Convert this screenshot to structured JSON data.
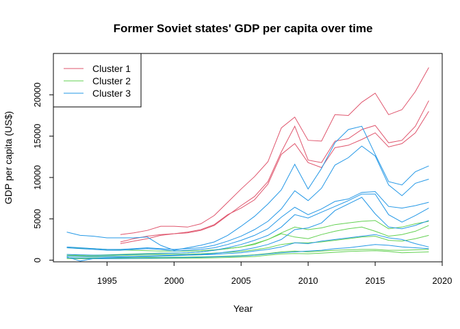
{
  "chart_data": {
    "type": "line",
    "title": "Former Soviet states' GDP per capita over time",
    "xlabel": "Year",
    "ylabel": "GDP per capita (US$)",
    "xlim": [
      1991,
      2020
    ],
    "ylim": [
      -200,
      25000
    ],
    "xticks": [
      1995,
      2000,
      2005,
      2010,
      2015,
      2020
    ],
    "yticks": [
      0,
      5000,
      10000,
      15000,
      20000
    ],
    "grid": false,
    "legend_position": "top-left",
    "legend": [
      {
        "name": "Cluster 1",
        "color": "#df536b"
      },
      {
        "name": "Cluster 2",
        "color": "#61d04f"
      },
      {
        "name": "Cluster 3",
        "color": "#2297e6"
      }
    ],
    "series": [
      {
        "cluster": 1,
        "color": "#df536b",
        "x": [
          1996,
          1997,
          1998,
          1999,
          2000,
          2001,
          2002,
          2003,
          2004,
          2005,
          2006,
          2007,
          2008,
          2009,
          2010,
          2011,
          2012,
          2013,
          2014,
          2015,
          2016,
          2017,
          2018,
          2019
        ],
        "values": [
          3100,
          3300,
          3600,
          4100,
          4100,
          4000,
          4400,
          5400,
          7000,
          8600,
          10100,
          11900,
          16000,
          17300,
          14500,
          14400,
          17600,
          17500,
          19100,
          20200,
          17600,
          18200,
          20400,
          23300
        ]
      },
      {
        "cluster": 1,
        "color": "#df536b",
        "x": [
          1996,
          1997,
          1998,
          1999,
          2000,
          2001,
          2002,
          2003,
          2004,
          2005,
          2006,
          2007,
          2008,
          2009,
          2010,
          2011,
          2012,
          2013,
          2014,
          2015,
          2016,
          2017,
          2018,
          2019
        ],
        "values": [
          2200,
          2600,
          2900,
          3100,
          3200,
          3300,
          3600,
          4200,
          5400,
          6600,
          7700,
          9500,
          13100,
          16200,
          12100,
          11800,
          14400,
          14700,
          15800,
          16300,
          14200,
          14500,
          16200,
          19300
        ]
      },
      {
        "cluster": 1,
        "color": "#df536b",
        "x": [
          1996,
          1997,
          1998,
          1999,
          2000,
          2001,
          2002,
          2003,
          2004,
          2005,
          2006,
          2007,
          2008,
          2009,
          2010,
          2011,
          2012,
          2013,
          2014,
          2015,
          2016,
          2017,
          2018,
          2019
        ],
        "values": [
          2000,
          2300,
          2600,
          3000,
          3200,
          3400,
          3700,
          4300,
          5500,
          6300,
          7300,
          9200,
          12800,
          14100,
          11800,
          11200,
          13600,
          13900,
          14600,
          15400,
          13700,
          14100,
          15400,
          18000
        ]
      },
      {
        "cluster": 2,
        "color": "#61d04f",
        "x": [
          1992,
          1993,
          1994,
          1995,
          1996,
          1997,
          1998,
          1999,
          2000,
          2001,
          2002,
          2003,
          2004,
          2005,
          2006,
          2007,
          2008,
          2009,
          2010,
          2011,
          2012,
          2013,
          2014,
          2015,
          2016,
          2017,
          2018,
          2019
        ],
        "values": [
          1500,
          1450,
          1400,
          1300,
          1250,
          1200,
          1150,
          1100,
          1100,
          1100,
          1150,
          1250,
          1400,
          1600,
          1900,
          2500,
          3300,
          4000,
          3700,
          3900,
          4300,
          4500,
          4700,
          4800,
          3800,
          4000,
          4400,
          4700
        ]
      },
      {
        "cluster": 2,
        "color": "#61d04f",
        "x": [
          1992,
          1993,
          1994,
          1995,
          1996,
          1997,
          1998,
          1999,
          2000,
          2001,
          2002,
          2003,
          2004,
          2005,
          2006,
          2007,
          2008,
          2009,
          2010,
          2011,
          2012,
          2013,
          2014,
          2015,
          2016,
          2017,
          2018,
          2019
        ],
        "values": [
          600,
          580,
          600,
          650,
          700,
          750,
          800,
          850,
          850,
          900,
          1000,
          1200,
          1400,
          1600,
          2000,
          2500,
          3200,
          2800,
          2600,
          3100,
          3500,
          3800,
          4000,
          3500,
          2900,
          3100,
          3500,
          4200
        ]
      },
      {
        "cluster": 2,
        "color": "#61d04f",
        "x": [
          1992,
          1993,
          1994,
          1995,
          1996,
          1997,
          1998,
          1999,
          2000,
          2001,
          2002,
          2003,
          2004,
          2005,
          2006,
          2007,
          2008,
          2009,
          2010,
          2011,
          2012,
          2013,
          2014,
          2015,
          2016,
          2017,
          2018,
          2019
        ],
        "values": [
          500,
          480,
          500,
          520,
          560,
          600,
          640,
          680,
          700,
          720,
          780,
          850,
          950,
          1050,
          1250,
          1500,
          1900,
          2100,
          2100,
          2200,
          2400,
          2600,
          2800,
          2900,
          2400,
          2300,
          2600,
          3000
        ]
      },
      {
        "cluster": 2,
        "color": "#61d04f",
        "x": [
          1992,
          1993,
          1994,
          1995,
          1996,
          1997,
          1998,
          1999,
          2000,
          2001,
          2002,
          2003,
          2004,
          2005,
          2006,
          2007,
          2008,
          2009,
          2010,
          2011,
          2012,
          2013,
          2014,
          2015,
          2016,
          2017,
          2018,
          2019
        ],
        "values": [
          300,
          280,
          270,
          280,
          300,
          320,
          340,
          350,
          360,
          380,
          400,
          450,
          500,
          550,
          650,
          800,
          1000,
          1100,
          1000,
          1100,
          1200,
          1250,
          1300,
          1300,
          1200,
          1200,
          1250,
          1300
        ]
      },
      {
        "cluster": 2,
        "color": "#61d04f",
        "x": [
          1992,
          1993,
          1994,
          1995,
          1996,
          1997,
          1998,
          1999,
          2000,
          2001,
          2002,
          2003,
          2004,
          2005,
          2006,
          2007,
          2008,
          2009,
          2010,
          2011,
          2012,
          2013,
          2014,
          2015,
          2016,
          2017,
          2018,
          2019
        ],
        "values": [
          200,
          180,
          170,
          180,
          190,
          200,
          210,
          220,
          230,
          240,
          260,
          290,
          330,
          380,
          450,
          600,
          750,
          800,
          780,
          850,
          950,
          1050,
          1100,
          1150,
          1050,
          900,
          950,
          1000
        ]
      },
      {
        "cluster": 3,
        "color": "#2297e6",
        "x": [
          1992,
          1993,
          1994,
          1995,
          1996,
          1997,
          1998,
          1999,
          2000,
          2001,
          2002,
          2003,
          2004,
          2005,
          2006,
          2007,
          2008,
          2009,
          2010,
          2011,
          2012,
          2013,
          2014,
          2015,
          2016,
          2017,
          2018,
          2019
        ],
        "values": [
          3400,
          3000,
          2900,
          2700,
          2700,
          2700,
          2800,
          1800,
          1200,
          1500,
          1800,
          2200,
          3000,
          4100,
          5300,
          6800,
          8500,
          11600,
          8600,
          11100,
          14200,
          15800,
          16200,
          12800,
          9500,
          9100,
          10700,
          11400
        ]
      },
      {
        "cluster": 3,
        "color": "#2297e6",
        "x": [
          1992,
          1993,
          1994,
          1995,
          1996,
          1997,
          1998,
          1999,
          2000,
          2001,
          2002,
          2003,
          2004,
          2005,
          2006,
          2007,
          2008,
          2009,
          2010,
          2011,
          2012,
          2013,
          2014,
          2015,
          2016,
          2017,
          2018,
          2019
        ],
        "values": [
          1600,
          1500,
          1400,
          1300,
          1300,
          1400,
          1500,
          1400,
          1300,
          1400,
          1500,
          1800,
          2300,
          2900,
          3700,
          4700,
          6200,
          8400,
          7200,
          8700,
          11500,
          12400,
          13800,
          12600,
          9100,
          7800,
          9300,
          9800
        ]
      },
      {
        "cluster": 3,
        "color": "#2297e6",
        "x": [
          1992,
          1993,
          1994,
          1995,
          1996,
          1997,
          1998,
          1999,
          2000,
          2001,
          2002,
          2003,
          2004,
          2005,
          2006,
          2007,
          2008,
          2009,
          2010,
          2011,
          2012,
          2013,
          2014,
          2015,
          2016,
          2017,
          2018,
          2019
        ],
        "values": [
          1500,
          1400,
          1300,
          1200,
          1200,
          1300,
          1400,
          1300,
          1100,
          1200,
          1300,
          1500,
          1900,
          2400,
          3000,
          3800,
          5200,
          6400,
          5500,
          6200,
          7100,
          7400,
          8200,
          8300,
          6500,
          6300,
          6600,
          7000
        ]
      },
      {
        "cluster": 3,
        "color": "#2297e6",
        "x": [
          1992,
          1993,
          1994,
          1995,
          1996,
          1997,
          1998,
          1999,
          2000,
          2001,
          2002,
          2003,
          2004,
          2005,
          2006,
          2007,
          2008,
          2009,
          2010,
          2011,
          2012,
          2013,
          2014,
          2015,
          2016,
          2017,
          2018,
          2019
        ],
        "values": [
          700,
          650,
          600,
          600,
          650,
          700,
          750,
          800,
          850,
          900,
          1000,
          1200,
          1500,
          1900,
          2400,
          3000,
          4000,
          5500,
          5100,
          5800,
          6500,
          7200,
          8000,
          8000,
          5500,
          4600,
          5400,
          6300
        ]
      },
      {
        "cluster": 3,
        "color": "#2297e6",
        "x": [
          1992,
          1993,
          1994,
          1995,
          1996,
          1997,
          1998,
          1999,
          2000,
          2001,
          2002,
          2003,
          2004,
          2005,
          2006,
          2007,
          2008,
          2009,
          2010,
          2011,
          2012,
          2013,
          2014,
          2015,
          2016,
          2017,
          2018,
          2019
        ],
        "values": [
          500,
          450,
          400,
          400,
          420,
          450,
          500,
          550,
          600,
          650,
          700,
          800,
          1000,
          1200,
          1500,
          1900,
          2500,
          3700,
          3900,
          4500,
          6000,
          6800,
          7600,
          5600,
          4000,
          3800,
          4200,
          4800
        ]
      },
      {
        "cluster": 3,
        "color": "#2297e6",
        "x": [
          1992,
          1993,
          1994,
          1995,
          1996,
          1997,
          1998,
          1999,
          2000,
          2001,
          2002,
          2003,
          2004,
          2005,
          2006,
          2007,
          2008,
          2009,
          2010,
          2011,
          2012,
          2013,
          2014,
          2015,
          2016,
          2017,
          2018,
          2019
        ],
        "values": [
          400,
          -100,
          200,
          300,
          350,
          400,
          450,
          500,
          550,
          600,
          650,
          700,
          800,
          900,
          1100,
          1300,
          1600,
          2100,
          2000,
          2300,
          2500,
          2700,
          2900,
          3100,
          2700,
          2500,
          2000,
          1600
        ]
      },
      {
        "cluster": 3,
        "color": "#2297e6",
        "x": [
          1992,
          1993,
          1994,
          1995,
          1996,
          1997,
          1998,
          1999,
          2000,
          2001,
          2002,
          2003,
          2004,
          2005,
          2006,
          2007,
          2008,
          2009,
          2010,
          2011,
          2012,
          2013,
          2014,
          2015,
          2016,
          2017,
          2018,
          2019
        ],
        "values": [
          300,
          250,
          200,
          180,
          200,
          220,
          250,
          280,
          300,
          320,
          350,
          400,
          450,
          500,
          600,
          750,
          900,
          1000,
          1100,
          1200,
          1400,
          1500,
          1700,
          1900,
          1800,
          1600,
          1500,
          1400
        ]
      }
    ]
  }
}
